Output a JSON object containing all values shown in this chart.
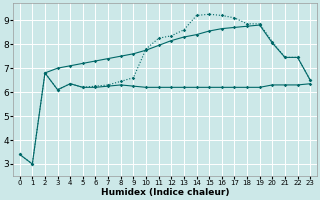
{
  "xlabel": "Humidex (Indice chaleur)",
  "xlim": [
    -0.5,
    23.5
  ],
  "ylim": [
    2.5,
    9.7
  ],
  "xticks": [
    0,
    1,
    2,
    3,
    4,
    5,
    6,
    7,
    8,
    9,
    10,
    11,
    12,
    13,
    14,
    15,
    16,
    17,
    18,
    19,
    20,
    21,
    22,
    23
  ],
  "yticks": [
    3,
    4,
    5,
    6,
    7,
    8,
    9
  ],
  "bg_color": "#cce8e8",
  "grid_color": "#ffffff",
  "line_color": "#006868",
  "line1_x": [
    0,
    1,
    2,
    3,
    4,
    5,
    6,
    7,
    8,
    9,
    10,
    11,
    12,
    13,
    14,
    15,
    16,
    17,
    18,
    19,
    20,
    21,
    22,
    23
  ],
  "line1_y": [
    3.4,
    3.0,
    6.8,
    6.1,
    6.35,
    6.2,
    6.2,
    6.25,
    6.3,
    6.25,
    6.2,
    6.2,
    6.2,
    6.2,
    6.2,
    6.2,
    6.2,
    6.2,
    6.2,
    6.2,
    6.3,
    6.3,
    6.3,
    6.35
  ],
  "line2_x": [
    2,
    3,
    4,
    5,
    6,
    7,
    8,
    9,
    10,
    11,
    12,
    13,
    14,
    15,
    16,
    17,
    18,
    19,
    20,
    21,
    22,
    23
  ],
  "line2_y": [
    6.8,
    7.0,
    7.1,
    7.2,
    7.3,
    7.4,
    7.5,
    7.6,
    7.75,
    7.95,
    8.15,
    8.3,
    8.4,
    8.55,
    8.65,
    8.7,
    8.75,
    8.8,
    8.05,
    7.45,
    7.45,
    6.5
  ],
  "line3_x": [
    0,
    1,
    2,
    3,
    4,
    5,
    6,
    7,
    8,
    9,
    10,
    11,
    12,
    13,
    14,
    15,
    16,
    17,
    18,
    19,
    20,
    21,
    22,
    23
  ],
  "line3_y": [
    3.4,
    3.0,
    6.8,
    6.1,
    6.35,
    6.2,
    6.25,
    6.3,
    6.45,
    6.6,
    7.8,
    8.25,
    8.35,
    8.6,
    9.2,
    9.25,
    9.2,
    9.1,
    8.85,
    8.85,
    8.1,
    7.45,
    7.45,
    6.5
  ]
}
